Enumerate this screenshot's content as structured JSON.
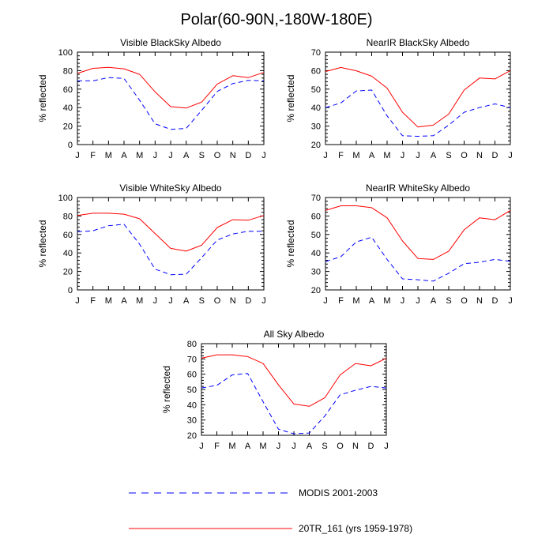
{
  "figure": {
    "title": "Polar(60-90N,-180W-180E)"
  },
  "legend": [
    {
      "label": "MODIS 2001-2003",
      "color": "#0000ff",
      "style": "dashed"
    },
    {
      "label": "20TR_161 (yrs 1959-1978)",
      "color": "#ff0000",
      "style": "solid"
    }
  ],
  "chart_data": [
    {
      "type": "line",
      "title": "Visible BlackSky Albedo",
      "xlabel": "",
      "ylabel": "% reflected",
      "categories": [
        "J",
        "F",
        "M",
        "A",
        "M",
        "J",
        "J",
        "A",
        "S",
        "O",
        "N",
        "D",
        "J"
      ],
      "ylim": [
        0,
        100
      ],
      "yticks": [
        0,
        20,
        40,
        60,
        80,
        100
      ],
      "series": [
        {
          "name": "20TR_161 (yrs 1959-1978)",
          "color": "#ff0000",
          "style": "solid",
          "values": [
            77,
            82.5,
            83.5,
            82,
            76,
            57,
            41,
            39.5,
            46,
            65.5,
            74.5,
            72.5,
            78
          ]
        },
        {
          "name": "MODIS 2001-2003",
          "color": "#0000ff",
          "style": "dashed",
          "values": [
            69,
            69,
            72.5,
            71.5,
            48,
            22.5,
            16.5,
            17.5,
            37,
            57.5,
            66,
            69.5,
            69
          ]
        }
      ]
    },
    {
      "type": "line",
      "title": "NearIR BlackSky Albedo",
      "xlabel": "",
      "ylabel": "% reflected",
      "categories": [
        "J",
        "F",
        "M",
        "A",
        "M",
        "J",
        "J",
        "A",
        "S",
        "O",
        "N",
        "D",
        "J"
      ],
      "ylim": [
        20,
        70
      ],
      "yticks": [
        20,
        30,
        40,
        50,
        60,
        70
      ],
      "series": [
        {
          "name": "20TR_161 (yrs 1959-1978)",
          "color": "#ff0000",
          "style": "solid",
          "values": [
            59.5,
            61.7,
            59.9,
            57,
            50.5,
            37.5,
            29.5,
            30.5,
            36.5,
            49.5,
            56,
            55.5,
            60
          ]
        },
        {
          "name": "MODIS 2001-2003",
          "color": "#0000ff",
          "style": "dashed",
          "values": [
            40,
            42.5,
            49,
            49.5,
            35.5,
            24.8,
            24.5,
            24.8,
            30.5,
            37.5,
            40,
            42,
            40
          ]
        }
      ]
    },
    {
      "type": "line",
      "title": "Visible WhiteSky Albedo",
      "xlabel": "",
      "ylabel": "% reflected",
      "categories": [
        "J",
        "F",
        "M",
        "A",
        "M",
        "J",
        "J",
        "A",
        "S",
        "O",
        "N",
        "D",
        "J"
      ],
      "ylim": [
        0,
        100
      ],
      "yticks": [
        0,
        20,
        40,
        60,
        80,
        100
      ],
      "series": [
        {
          "name": "20TR_161 (yrs 1959-1978)",
          "color": "#ff0000",
          "style": "solid",
          "values": [
            80.5,
            83,
            83,
            82,
            77,
            61,
            45,
            42,
            48.5,
            67.5,
            76,
            75.5,
            80.5
          ]
        },
        {
          "name": "MODIS 2001-2003",
          "color": "#0000ff",
          "style": "dashed",
          "values": [
            63,
            64,
            69.5,
            71,
            49.5,
            22.5,
            16.5,
            17,
            35,
            54,
            60.5,
            63.5,
            63.5
          ]
        }
      ]
    },
    {
      "type": "line",
      "title": "NearIR WhiteSky Albedo",
      "xlabel": "",
      "ylabel": "% reflected",
      "categories": [
        "J",
        "F",
        "M",
        "A",
        "M",
        "J",
        "J",
        "A",
        "S",
        "O",
        "N",
        "D",
        "J"
      ],
      "ylim": [
        20,
        70
      ],
      "yticks": [
        20,
        30,
        40,
        50,
        60,
        70
      ],
      "series": [
        {
          "name": "20TR_161 (yrs 1959-1978)",
          "color": "#ff0000",
          "style": "solid",
          "values": [
            63,
            65.5,
            65.5,
            64.5,
            59,
            46.5,
            37,
            36.5,
            41,
            52.5,
            59,
            58,
            63
          ]
        },
        {
          "name": "MODIS 2001-2003",
          "color": "#0000ff",
          "style": "dashed",
          "values": [
            35.3,
            38,
            46,
            48.5,
            36.5,
            26,
            25.5,
            24.8,
            29,
            34.2,
            35,
            36.5,
            35.5
          ]
        }
      ]
    },
    {
      "type": "line",
      "title": "All Sky Albedo",
      "xlabel": "",
      "ylabel": "% reflected",
      "categories": [
        "J",
        "F",
        "M",
        "A",
        "M",
        "J",
        "J",
        "A",
        "S",
        "O",
        "N",
        "D",
        "J"
      ],
      "ylim": [
        20,
        80
      ],
      "yticks": [
        20,
        30,
        40,
        50,
        60,
        70,
        80
      ],
      "series": [
        {
          "name": "20TR_161 (yrs 1959-1978)",
          "color": "#ff0000",
          "style": "solid",
          "values": [
            70.5,
            72.7,
            72.7,
            71.5,
            67,
            53,
            40.5,
            39,
            44.5,
            59.5,
            67,
            65.5,
            70.5
          ]
        },
        {
          "name": "MODIS 2001-2003",
          "color": "#0000ff",
          "style": "dashed",
          "values": [
            51,
            52.7,
            59.5,
            60.5,
            42,
            24,
            21,
            21.5,
            32.5,
            46.5,
            49.5,
            52,
            51
          ]
        }
      ]
    }
  ]
}
